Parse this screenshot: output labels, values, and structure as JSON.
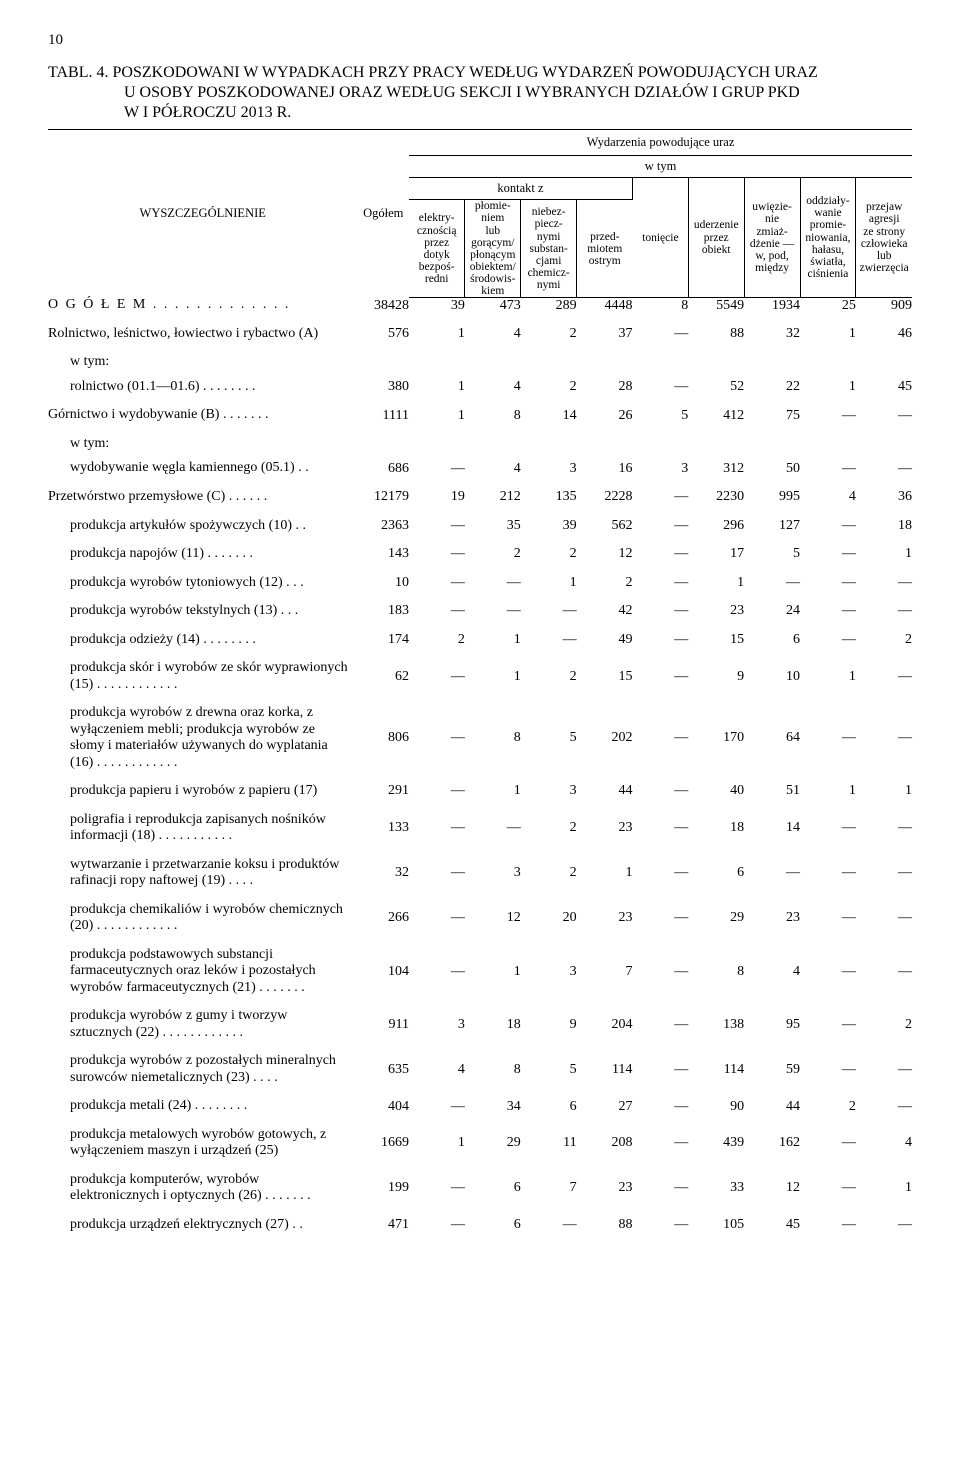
{
  "page_number": "10",
  "title": {
    "prefix": "TABL. 4.",
    "line1": "POSZKODOWANI W WYPADKACH PRZY PRACY WEDŁUG WYDARZEŃ POWODUJĄCYCH URAZ",
    "line2": "U OSOBY POSZKODOWANEJ ORAZ WEDŁUG SEKCJI I WYBRANYCH DZIAŁÓW I GRUP PKD",
    "line3": "W I PÓŁROCZU 2013 R."
  },
  "header": {
    "spec": "WYSZCZEGÓLNIENIE",
    "ogolem": "Ogółem",
    "wydarzenia": "Wydarzenia powodujące uraz",
    "wtym": "w tym",
    "kontakt": "kontakt z",
    "cols": {
      "c1": "elektry-\ncznością\nprzez\ndotyk\nbezpoś-\nredni",
      "c2": "płomie-\nniem\nlub\ngorącym/\npłonącym\nobiektem/\nśrodowis-\nkiem",
      "c3": "niebez-\npiecz-\nnymi\nsubstan-\ncjami\nchemicz-\nnymi",
      "c4": "przed-\nmiotem\nostrym",
      "c5": "tonięcie",
      "c6": "uderzenie\nprzez\nobiekt",
      "c7": "uwięzie-\nnie\nzmiaż-\ndżenie —\nw, pod,\nmiędzy",
      "c8": "oddziały-\nwanie\npromie-\nniowania,\nhałasu,\nświatła,\nciśnienia",
      "c9": "przejaw\nagresji\nze strony\nczłowieka\nlub\nzwierzęcia"
    }
  },
  "rows": [
    {
      "label": "O G Ó Ł E M  .  .  .  .  .  .  .  .  .  .  .  .  .",
      "class": "bold",
      "cells": [
        "38428",
        "39",
        "473",
        "289",
        "4448",
        "8",
        "5549",
        "1934",
        "25",
        "909"
      ]
    },
    {
      "gap": true
    },
    {
      "label": "Rolnictwo, leśnictwo, łowiectwo i rybactwo (A)",
      "cells": [
        "576",
        "1",
        "4",
        "2",
        "37",
        "—",
        "88",
        "32",
        "1",
        "46"
      ]
    },
    {
      "gap": true
    },
    {
      "label": "w tym:",
      "indent": 1,
      "cells": []
    },
    {
      "gap-sm": true
    },
    {
      "label": "rolnictwo  (01.1—01.6)  .  .  .  .  .  .  .  .",
      "indent": 1,
      "cells": [
        "380",
        "1",
        "4",
        "2",
        "28",
        "—",
        "52",
        "22",
        "1",
        "45"
      ]
    },
    {
      "gap": true
    },
    {
      "label": "Górnictwo i wydobywanie (B)  .  .  .  .  .  .  .",
      "cells": [
        "1111",
        "1",
        "8",
        "14",
        "26",
        "5",
        "412",
        "75",
        "—",
        "—"
      ]
    },
    {
      "gap": true
    },
    {
      "label": "w tym:",
      "indent": 1,
      "cells": []
    },
    {
      "gap-sm": true
    },
    {
      "label": "wydobywanie węgla kamiennego (05.1)  .  .",
      "indent": 1,
      "cells": [
        "686",
        "—",
        "4",
        "3",
        "16",
        "3",
        "312",
        "50",
        "—",
        "—"
      ]
    },
    {
      "gap": true
    },
    {
      "label": "Przetwórstwo  przemysłowe  (C)  .  .  .  .  .  .",
      "cells": [
        "12179",
        "19",
        "212",
        "135",
        "2228",
        "—",
        "2230",
        "995",
        "4",
        "36"
      ]
    },
    {
      "gap": true
    },
    {
      "label": "produkcja artykułów spożywczych (10)  .  .",
      "indent": 1,
      "cells": [
        "2363",
        "—",
        "35",
        "39",
        "562",
        "—",
        "296",
        "127",
        "—",
        "18"
      ]
    },
    {
      "gap": true
    },
    {
      "label": "produkcja  napojów  (11)  .  .  .  .  .  .  .",
      "indent": 1,
      "cells": [
        "143",
        "—",
        "2",
        "2",
        "12",
        "—",
        "17",
        "5",
        "—",
        "1"
      ]
    },
    {
      "gap": true
    },
    {
      "label": "produkcja wyrobów tytoniowych (12)  .  .  .",
      "indent": 1,
      "cells": [
        "10",
        "—",
        "—",
        "1",
        "2",
        "—",
        "1",
        "—",
        "—",
        "—"
      ]
    },
    {
      "gap": true
    },
    {
      "label": "produkcja wyrobów tekstylnych (13)  .  .  .",
      "indent": 1,
      "cells": [
        "183",
        "—",
        "—",
        "—",
        "42",
        "—",
        "23",
        "24",
        "—",
        "—"
      ]
    },
    {
      "gap": true
    },
    {
      "label": "produkcja odzieży (14)  .  .  .  .  .  .  .  .",
      "indent": 1,
      "cells": [
        "174",
        "2",
        "1",
        "—",
        "49",
        "—",
        "15",
        "6",
        "—",
        "2"
      ]
    },
    {
      "gap": true
    },
    {
      "label": "produkcja skór i wyrobów ze skór wyprawionych (15)  .  .  .  .  .  .  .  .  .  .  .  .",
      "indent": 1,
      "cells": [
        "62",
        "—",
        "1",
        "2",
        "15",
        "—",
        "9",
        "10",
        "1",
        "—"
      ]
    },
    {
      "gap": true
    },
    {
      "label": "produkcja wyrobów z drewna oraz korka, z wyłączeniem mebli; produkcja wyrobów ze słomy i materiałów używanych do wyplatania (16)  .  .  .  .  .  .  .  .  .  .  .  .",
      "indent": 1,
      "cells": [
        "806",
        "—",
        "8",
        "5",
        "202",
        "—",
        "170",
        "64",
        "—",
        "—"
      ]
    },
    {
      "gap": true
    },
    {
      "label": "produkcja papieru i wyrobów z papieru (17)",
      "indent": 1,
      "cells": [
        "291",
        "—",
        "1",
        "3",
        "44",
        "—",
        "40",
        "51",
        "1",
        "1"
      ]
    },
    {
      "gap": true
    },
    {
      "label": "poligrafia i reprodukcja zapisanych nośników informacji (18)  .  .  .  .  .  .  .  .  .  .  .",
      "indent": 1,
      "cells": [
        "133",
        "—",
        "—",
        "2",
        "23",
        "—",
        "18",
        "14",
        "—",
        "—"
      ]
    },
    {
      "gap": true
    },
    {
      "label": "wytwarzanie i przetwarzanie koksu i produktów rafinacji ropy naftowej (19)  .  .  .  .",
      "indent": 1,
      "cells": [
        "32",
        "—",
        "3",
        "2",
        "1",
        "—",
        "6",
        "—",
        "—",
        "—"
      ]
    },
    {
      "gap": true
    },
    {
      "label": "produkcja chemikaliów i wyrobów chemicznych (20)  .  .  .  .  .  .  .  .  .  .  .  .",
      "indent": 1,
      "cells": [
        "266",
        "—",
        "12",
        "20",
        "23",
        "—",
        "29",
        "23",
        "—",
        "—"
      ]
    },
    {
      "gap": true
    },
    {
      "label": "produkcja podstawowych substancji farmaceutycznych oraz leków i pozostałych wyrobów farmaceutycznych  (21)  .  .  .  .  .  .  .",
      "indent": 1,
      "cells": [
        "104",
        "—",
        "1",
        "3",
        "7",
        "—",
        "8",
        "4",
        "—",
        "—"
      ]
    },
    {
      "gap": true
    },
    {
      "label": "produkcja wyrobów z gumy i tworzyw sztucznych (22)  .  .  .  .  .  .  .  .  .  .  .  .",
      "indent": 1,
      "cells": [
        "911",
        "3",
        "18",
        "9",
        "204",
        "—",
        "138",
        "95",
        "—",
        "2"
      ]
    },
    {
      "gap": true
    },
    {
      "label": "produkcja wyrobów z pozostałych mineralnych surowców niemetalicznych (23)  .  .  .  .",
      "indent": 1,
      "cells": [
        "635",
        "4",
        "8",
        "5",
        "114",
        "—",
        "114",
        "59",
        "—",
        "—"
      ]
    },
    {
      "gap": true
    },
    {
      "label": "produkcja metali (24)  .  .  .  .  .  .  .  .",
      "indent": 1,
      "cells": [
        "404",
        "—",
        "34",
        "6",
        "27",
        "—",
        "90",
        "44",
        "2",
        "—"
      ]
    },
    {
      "gap": true
    },
    {
      "label": "produkcja metalowych wyrobów gotowych, z wyłączeniem maszyn i urządzeń (25)",
      "indent": 1,
      "cells": [
        "1669",
        "1",
        "29",
        "11",
        "208",
        "—",
        "439",
        "162",
        "—",
        "4"
      ]
    },
    {
      "gap": true
    },
    {
      "label": "produkcja komputerów, wyrobów elektronicznych  i  optycznych  (26)  .  .  .  .  .  .  .",
      "indent": 1,
      "cells": [
        "199",
        "—",
        "6",
        "7",
        "23",
        "—",
        "33",
        "12",
        "—",
        "1"
      ]
    },
    {
      "gap": true
    },
    {
      "label": "produkcja urządzeń elektrycznych (27)  .  .",
      "indent": 1,
      "cells": [
        "471",
        "—",
        "6",
        "—",
        "88",
        "—",
        "105",
        "45",
        "—",
        "—"
      ]
    }
  ]
}
